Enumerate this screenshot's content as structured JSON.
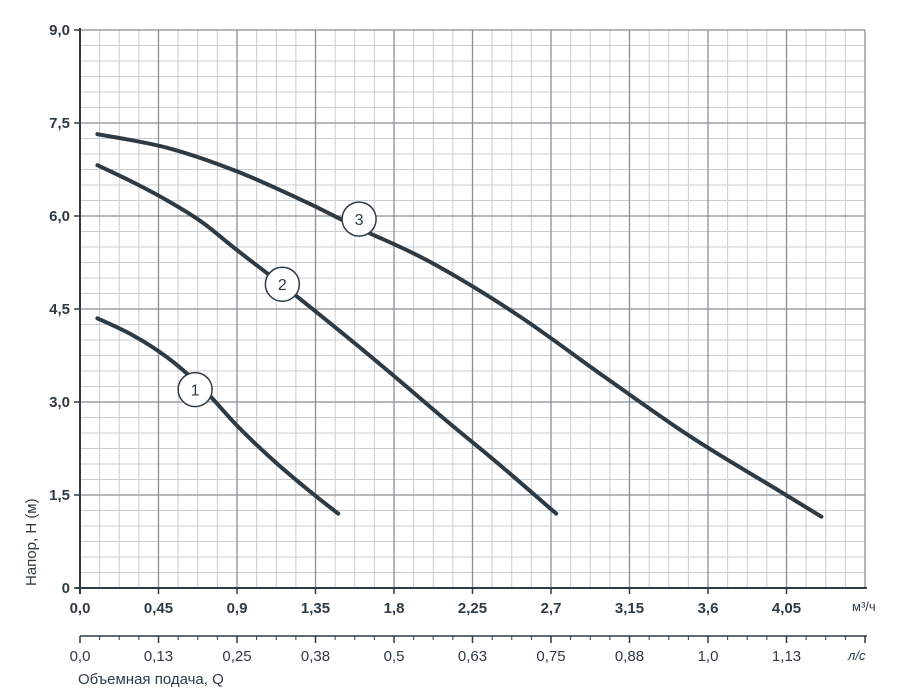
{
  "chart_data": {
    "type": "line",
    "title": "",
    "xlabel": "Объемная подача, Q",
    "ylabel": "Напор, H (м)",
    "x_unit": "м³/ч",
    "x2_unit": "л/с",
    "xlim": [
      0,
      4.5
    ],
    "ylim": [
      0,
      9.0
    ],
    "grid": true,
    "x_ticks": [
      "0,0",
      "0,45",
      "0,9",
      "1,35",
      "1,8",
      "2,25",
      "2,7",
      "3,15",
      "3,6",
      "4,05"
    ],
    "x2_ticks": [
      "0,0",
      "0,13",
      "0,25",
      "0,38",
      "0,5",
      "0,63",
      "0,75",
      "0,88",
      "1,0",
      "1,13"
    ],
    "y_ticks": [
      "0",
      "1,5",
      "3,0",
      "4,5",
      "6,0",
      "7,5",
      "9,0"
    ],
    "colors": {
      "curve": "#2e3a44",
      "grid": "#8a8f94",
      "minor_grid": "#c9ccd0",
      "axis": "#2e3a44"
    },
    "series": [
      {
        "label": "1",
        "label_at": [
          0.66,
          3.2
        ],
        "x": [
          0.1,
          0.3,
          0.5,
          0.7,
          0.9,
          1.1,
          1.3,
          1.48
        ],
        "y": [
          4.35,
          4.08,
          3.72,
          3.23,
          2.62,
          2.08,
          1.6,
          1.2
        ]
      },
      {
        "label": "2",
        "label_at": [
          1.16,
          4.9
        ],
        "x": [
          0.1,
          0.3,
          0.5,
          0.7,
          0.9,
          1.2,
          1.5,
          1.8,
          2.1,
          2.4,
          2.73
        ],
        "y": [
          6.82,
          6.55,
          6.25,
          5.9,
          5.45,
          4.8,
          4.12,
          3.42,
          2.7,
          2.0,
          1.2
        ]
      },
      {
        "label": "3",
        "label_at": [
          1.6,
          5.95
        ],
        "x": [
          0.1,
          0.5,
          0.9,
          1.3,
          1.6,
          2.0,
          2.5,
          3.0,
          3.5,
          4.0,
          4.25
        ],
        "y": [
          7.32,
          7.1,
          6.72,
          6.22,
          5.8,
          5.27,
          4.42,
          3.42,
          2.44,
          1.58,
          1.15
        ]
      }
    ]
  }
}
